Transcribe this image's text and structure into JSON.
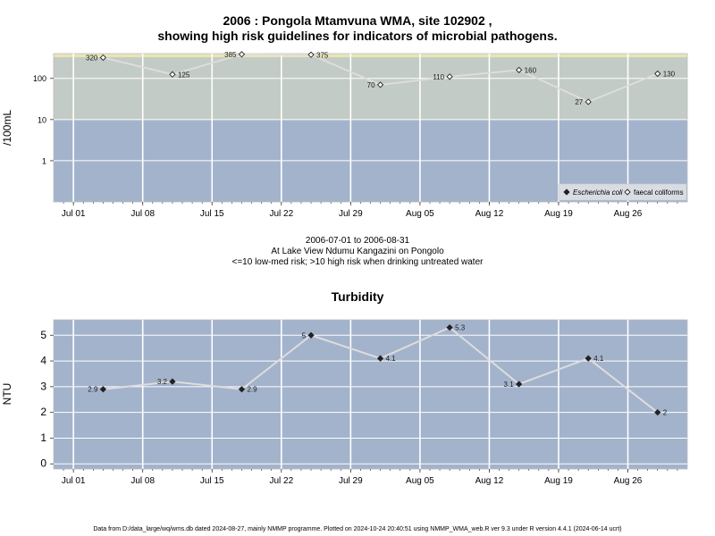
{
  "top": {
    "title_line1": "2006 : Pongola Mtamvuna WMA, site 102902 ,",
    "title_line2": "showing high risk guidelines for indicators of microbial pathogens.",
    "subtitle_line1": "2006-07-01 to 2006-08-31",
    "subtitle_line2": "At Lake View Ndumu Kangazini on Pongolo",
    "subtitle_line3": "<=10 low-med risk; >10 high risk when drinking untreated water"
  },
  "bottom": {
    "title": "Turbidity"
  },
  "footer": "Data from D:/data_large/wq/wms.db dated 2024-08-27, mainly NMMP programme. Plotted on 2024-10-24 20:40:51 using NMMP_WMA_web.R ver 9.3 under R version 4.4.1 (2024-06-14 ucrt)",
  "colors": {
    "panel_low": "#a3b3cc",
    "panel_high": "#c3cbc6",
    "panel_top_band": "#e9e6b5",
    "line": "#dddddd",
    "grid": "#ffffff"
  },
  "chart_data": [
    {
      "type": "line",
      "title": "2006 : Pongola Mtamvuna WMA, site 102902 , showing high risk guidelines for indicators of microbial pathogens.",
      "ylabel": "/100mL",
      "yscale": "log",
      "ylim": [
        0.1,
        400
      ],
      "yticks": [
        1,
        10,
        100
      ],
      "ytick_labels": [
        "1",
        "10",
        "100"
      ],
      "xlim": [
        "2006-06-29",
        "2006-09-01"
      ],
      "xticks": [
        "2006-07-01",
        "2006-07-08",
        "2006-07-15",
        "2006-07-22",
        "2006-07-29",
        "2006-08-05",
        "2006-08-12",
        "2006-08-19",
        "2006-08-26"
      ],
      "xtick_labels": [
        "Jul 01",
        "Jul 08",
        "Jul 15",
        "Jul 22",
        "Jul 29",
        "Aug 05",
        "Aug 12",
        "Aug 19",
        "Aug 26"
      ],
      "risk_threshold": 10,
      "grid": true,
      "legend_position": "bottom-right",
      "series": [
        {
          "name": "faecal coliforms",
          "marker": "open-diamond",
          "x": [
            "2006-07-04",
            "2006-07-11",
            "2006-07-18",
            "2006-07-25",
            "2006-08-01",
            "2006-08-08",
            "2006-08-15",
            "2006-08-22",
            "2006-08-29"
          ],
          "values": [
            320,
            125,
            385,
            375,
            70,
            110,
            160,
            27,
            130
          ],
          "labels": [
            "320",
            "125",
            "385",
            "375",
            "70",
            "110",
            "160",
            "27",
            "130"
          ],
          "label_side": [
            "left",
            "right",
            "left",
            "right",
            "left",
            "left",
            "right",
            "left",
            "right"
          ]
        }
      ],
      "legend_entries": [
        {
          "text": "Escherichia coli",
          "marker": "filled-diamond",
          "italic": true
        },
        {
          "text": "faecal coliforms",
          "marker": "open-diamond",
          "italic": false
        }
      ]
    },
    {
      "type": "line",
      "title": "Turbidity",
      "ylabel": "NTU",
      "ylim": [
        -0.2,
        5.6
      ],
      "yticks": [
        0,
        1,
        2,
        3,
        4,
        5
      ],
      "ytick_labels": [
        "0",
        "1",
        "2",
        "3",
        "4",
        "5"
      ],
      "xlim": [
        "2006-06-29",
        "2006-09-01"
      ],
      "xticks": [
        "2006-07-01",
        "2006-07-08",
        "2006-07-15",
        "2006-07-22",
        "2006-07-29",
        "2006-08-05",
        "2006-08-12",
        "2006-08-19",
        "2006-08-26"
      ],
      "xtick_labels": [
        "Jul 01",
        "Jul 08",
        "Jul 15",
        "Jul 22",
        "Jul 29",
        "Aug 05",
        "Aug 12",
        "Aug 19",
        "Aug 26"
      ],
      "grid": true,
      "series": [
        {
          "marker": "filled-diamond",
          "x": [
            "2006-07-04",
            "2006-07-11",
            "2006-07-18",
            "2006-07-25",
            "2006-08-01",
            "2006-08-08",
            "2006-08-15",
            "2006-08-22",
            "2006-08-29"
          ],
          "values": [
            2.9,
            3.2,
            2.9,
            5,
            4.1,
            5.3,
            3.1,
            4.1,
            2
          ],
          "labels": [
            "2.9",
            "3.2",
            "2.9",
            "5",
            "4.1",
            "5.3",
            "3.1",
            "4.1",
            "2"
          ],
          "label_side": [
            "left",
            "left",
            "right",
            "left",
            "right",
            "right",
            "left",
            "right",
            "right"
          ]
        }
      ]
    }
  ]
}
